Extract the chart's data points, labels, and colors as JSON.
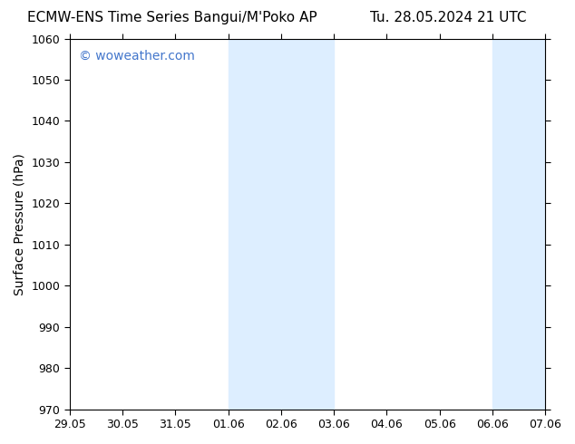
{
  "title_left": "ECMW-ENS Time Series Bangui/M'Poko AP",
  "title_right": "Tu. 28.05.2024 21 UTC",
  "ylabel": "Surface Pressure (hPa)",
  "xlabel": "",
  "ylim": [
    970,
    1060
  ],
  "yticks": [
    970,
    980,
    990,
    1000,
    1010,
    1020,
    1030,
    1040,
    1050,
    1060
  ],
  "xtick_labels": [
    "29.05",
    "30.05",
    "31.05",
    "01.06",
    "02.06",
    "03.06",
    "04.06",
    "05.06",
    "06.06",
    "07.06"
  ],
  "xtick_positions": [
    0,
    1,
    2,
    3,
    4,
    5,
    6,
    7,
    8,
    9
  ],
  "shaded_bands": [
    {
      "x_start": 3.0,
      "x_end": 3.5
    },
    {
      "x_start": 3.5,
      "x_end": 5.0
    },
    {
      "x_start": 8.0,
      "x_end": 8.5
    },
    {
      "x_start": 8.5,
      "x_end": 9.0
    }
  ],
  "shade_color": "#ddeeff",
  "background_color": "#ffffff",
  "plot_bg_color": "#ffffff",
  "watermark_text": "© woweather.com",
  "watermark_color": "#4477cc",
  "title_fontsize": 11,
  "axis_label_fontsize": 10,
  "tick_fontsize": 9,
  "watermark_fontsize": 10,
  "border_color": "#000000",
  "tick_color": "#000000"
}
